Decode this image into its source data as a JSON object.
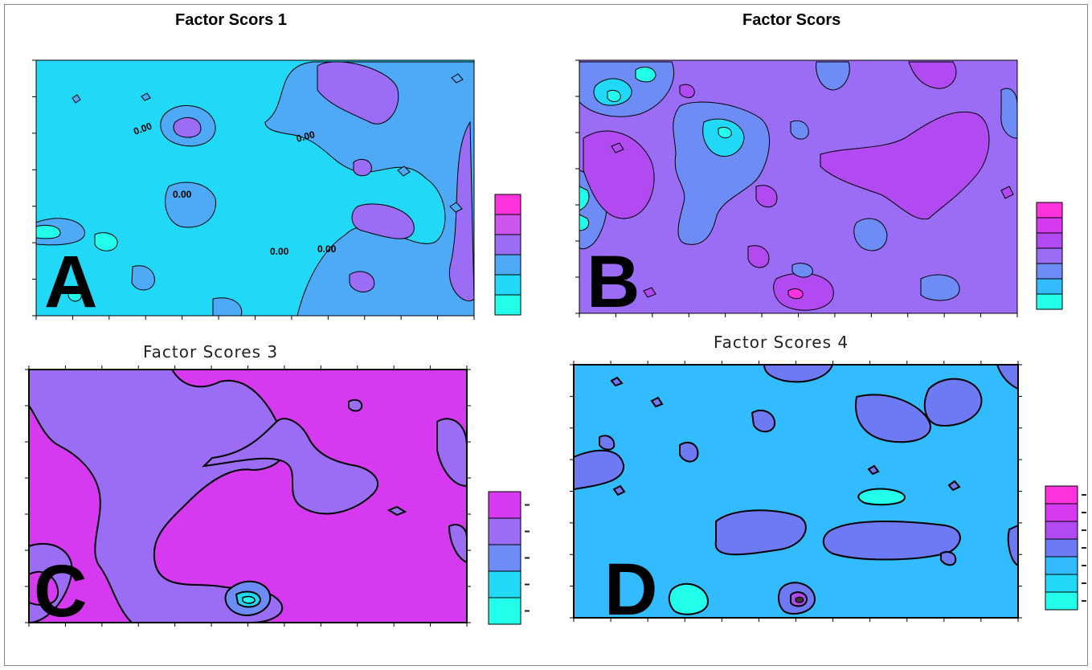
{
  "figure": {
    "panels": [
      {
        "letter": "A",
        "title": "Factor Scors 1",
        "contour_label": "0.00"
      },
      {
        "letter": "B",
        "title": "Factor  Scors"
      },
      {
        "letter": "C",
        "title": "Factor Scores 3"
      },
      {
        "letter": "D",
        "title": "Factor Scores 4"
      }
    ]
  },
  "chart_data": [
    {
      "type": "heatmap",
      "title": "Factor Scors 1",
      "panel": "A",
      "contour_labels": [
        "0.00",
        "0.00",
        "0.00",
        "0.00",
        "0.00"
      ],
      "legend_levels": 6,
      "colors": {
        "background": "#22d8f7",
        "mid": "#4eaaf6",
        "high": "#9b6cf4",
        "top": "#ff33dd",
        "low": "#22ffea"
      }
    },
    {
      "type": "heatmap",
      "title": "Factor  Scors",
      "panel": "B",
      "legend_levels": 7,
      "colors": {
        "background": "#9b6cf4",
        "mid": "#6d8cf6",
        "high": "#b14af0",
        "low": "#22ffea",
        "top": "#ff33dd"
      }
    },
    {
      "type": "heatmap",
      "title": "Factor Scores 3",
      "panel": "C",
      "legend_levels": 5,
      "colors": {
        "background": "#d63af0",
        "mid": "#9b6cf4",
        "low": "#22ffea"
      }
    },
    {
      "type": "heatmap",
      "title": "Factor Scores 4",
      "panel": "D",
      "legend_levels": 7,
      "colors": {
        "background": "#33bbff",
        "mid": "#6d7af4",
        "low": "#22ffea",
        "top": "#ff33dd"
      }
    }
  ]
}
